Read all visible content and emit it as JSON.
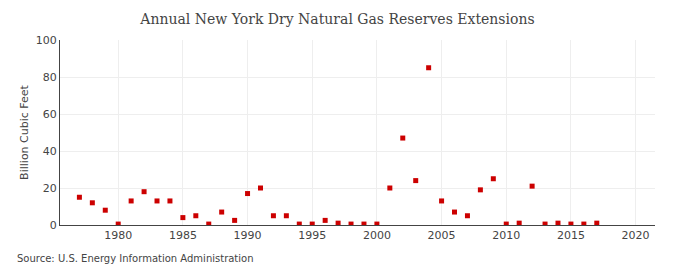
{
  "chart_data": {
    "type": "scatter",
    "title": "Annual New York Dry Natural Gas Reserves Extensions",
    "ylabel": "Billion Cubic Feet",
    "source": "Source: U.S. Energy Information Administration",
    "x": [
      1977,
      1978,
      1979,
      1980,
      1981,
      1982,
      1983,
      1984,
      1985,
      1986,
      1987,
      1988,
      1989,
      1990,
      1991,
      1992,
      1993,
      1994,
      1995,
      1996,
      1997,
      1998,
      1999,
      2000,
      2001,
      2002,
      2003,
      2004,
      2005,
      2006,
      2007,
      2008,
      2009,
      2010,
      2011,
      2012,
      2013,
      2014,
      2015,
      2016,
      2017
    ],
    "values": [
      15,
      12,
      8,
      0.5,
      13,
      18,
      13,
      13,
      4,
      5,
      0.5,
      7,
      2.5,
      17,
      20,
      5,
      5,
      0.5,
      0.5,
      2.5,
      1,
      0.5,
      0.5,
      0.5,
      20,
      47,
      24,
      85,
      13,
      7,
      5,
      19,
      25,
      0.5,
      1,
      21,
      0.5,
      1,
      0.5,
      0.5,
      1
    ],
    "color": "#cc0000",
    "marker": "square",
    "xlim": [
      1975.5,
      2021.5
    ],
    "xticks": [
      1980,
      1985,
      1990,
      1995,
      2000,
      2005,
      2010,
      2015,
      2020
    ],
    "ylim": [
      0,
      100
    ],
    "yticks": [
      0,
      20,
      40,
      60,
      80,
      100
    ],
    "grid": true
  }
}
